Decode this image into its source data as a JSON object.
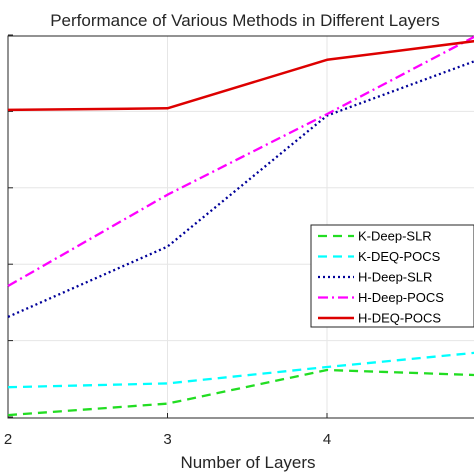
{
  "chart_data": {
    "type": "line",
    "title": "Performance of Various Methods in Different Layers",
    "xlabel": "Number of Layers",
    "ylabel": "",
    "x": [
      2,
      3,
      4,
      5
    ],
    "xticks": [
      "2",
      "3",
      "4"
    ],
    "xlim": [
      2,
      5
    ],
    "ylim": [
      0,
      1
    ],
    "grid": true,
    "legend_position": "right",
    "series": [
      {
        "name": "K-Deep-SLR",
        "color": "#22dd22",
        "dash": "dashed",
        "values": [
          0.005,
          0.035,
          0.123,
          0.109
        ]
      },
      {
        "name": "K-DEQ-POCS",
        "color": "#00ffff",
        "dash": "dashed",
        "values": [
          0.078,
          0.088,
          0.131,
          0.171
        ]
      },
      {
        "name": "H-Deep-SLR",
        "color": "#000099",
        "dash": "dotted",
        "values": [
          0.262,
          0.446,
          0.789,
          0.943
        ]
      },
      {
        "name": "H-Deep-POCS",
        "color": "#ff00ff",
        "dash": "dashdot",
        "values": [
          0.343,
          0.582,
          0.793,
          1.012
        ]
      },
      {
        "name": "H-DEQ-POCS",
        "color": "#dd0000",
        "dash": "solid",
        "values": [
          0.804,
          0.808,
          0.935,
          0.988
        ]
      }
    ]
  }
}
